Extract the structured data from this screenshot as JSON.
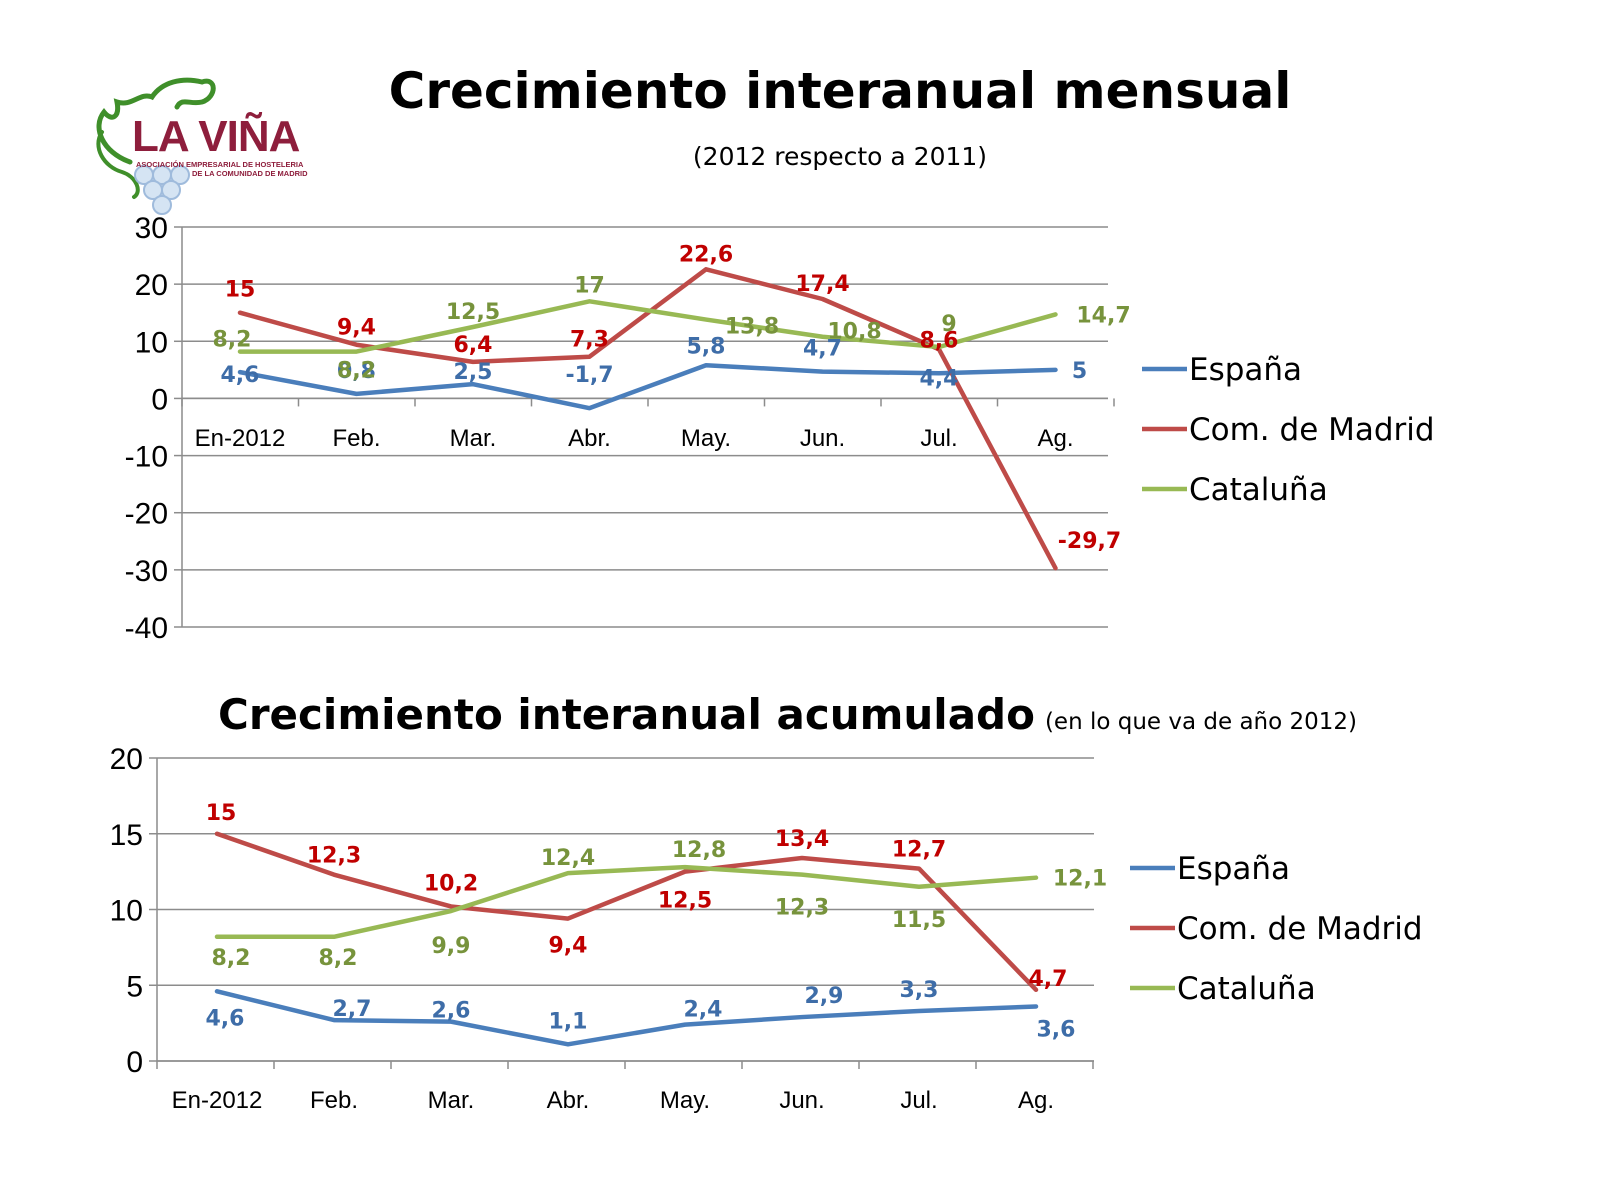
{
  "logo": {
    "name": "LA VIÑA",
    "line1": "ASOCIACIÓN EMPRESARIAL DE HOSTELERIA",
    "line2": "DE LA COMUNIDAD DE MADRID"
  },
  "colors": {
    "espana": "#4a7ebb",
    "madrid": "#be4b48",
    "cataluna": "#98b954",
    "label_espana": "#3e6da8",
    "label_madrid": "#c00000",
    "label_cataluna": "#77933c"
  },
  "chart_data": [
    {
      "type": "line",
      "title": "Crecimiento interanual mensual",
      "subtitle": "(2012 respecto a 2011)",
      "categories": [
        "En-2012",
        "Feb.",
        "Mar.",
        "Abr.",
        "May.",
        "Jun.",
        "Jul.",
        "Ag."
      ],
      "ylim": [
        -40,
        30
      ],
      "yticks": [
        "30",
        "20",
        "10",
        "0",
        "-10",
        "-20",
        "-30",
        "-40"
      ],
      "grid": true,
      "legend": "right",
      "series": [
        {
          "name": "España",
          "values": [
            4.6,
            0.8,
            2.5,
            -1.7,
            5.8,
            4.7,
            4.4,
            5
          ],
          "labels": [
            "4,6",
            "0,8",
            "2,5",
            "-1,7",
            "5,8",
            "4,7",
            "4,4",
            "5"
          ]
        },
        {
          "name": "Com. de Madrid",
          "values": [
            15,
            9.4,
            6.4,
            7.3,
            22.6,
            17.4,
            8.6,
            -29.7
          ],
          "labels": [
            "15",
            "9,4",
            "6,4",
            "7,3",
            "22,6",
            "17,4",
            "8,6",
            "-29,7"
          ]
        },
        {
          "name": "Cataluña",
          "values": [
            8.2,
            8.2,
            12.5,
            17,
            13.8,
            10.8,
            9,
            14.7
          ],
          "labels": [
            "8,2",
            "8,2",
            "12,5",
            "17",
            "13,8",
            "10,8",
            "9",
            "14,7"
          ]
        }
      ]
    },
    {
      "type": "line",
      "title": "Crecimiento interanual acumulado",
      "subtitle": "(en lo que va de año 2012)",
      "categories": [
        "En-2012",
        "Feb.",
        "Mar.",
        "Abr.",
        "May.",
        "Jun.",
        "Jul.",
        "Ag."
      ],
      "ylim": [
        0,
        20
      ],
      "yticks": [
        "20",
        "15",
        "10",
        "5",
        "0"
      ],
      "grid": true,
      "legend": "right",
      "series": [
        {
          "name": "España",
          "values": [
            4.6,
            2.7,
            2.6,
            1.1,
            2.4,
            2.9,
            3.3,
            3.6
          ],
          "labels": [
            "4,6",
            "2,7",
            "2,6",
            "1,1",
            "2,4",
            "2,9",
            "3,3",
            "3,6"
          ]
        },
        {
          "name": "Com. de Madrid",
          "values": [
            15,
            12.3,
            10.2,
            9.4,
            12.5,
            13.4,
            12.7,
            4.7
          ],
          "labels": [
            "15",
            "12,3",
            "10,2",
            "9,4",
            "12,5",
            "13,4",
            "12,7",
            "4,7"
          ]
        },
        {
          "name": "Cataluña",
          "values": [
            8.2,
            8.2,
            9.9,
            12.4,
            12.8,
            12.3,
            11.5,
            12.1
          ],
          "labels": [
            "8,2",
            "8,2",
            "9,9",
            "12,4",
            "12,8",
            "12,3",
            "11,5",
            "12,1"
          ]
        }
      ]
    }
  ]
}
